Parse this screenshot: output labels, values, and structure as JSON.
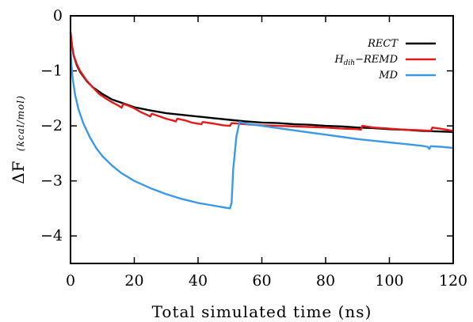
{
  "chart_data": {
    "type": "line",
    "xlabel": "Total simulated time (ns)",
    "ylabel_main": "ΔF",
    "ylabel_unit": "(kcal/mol)",
    "xlim": [
      0,
      120
    ],
    "ylim": [
      -4.5,
      0
    ],
    "xticks": [
      0,
      20,
      40,
      60,
      80,
      100,
      120
    ],
    "yticks": [
      0,
      -1,
      -2,
      -3,
      -4
    ],
    "grid": false,
    "legend_position": "top-right",
    "series": [
      {
        "name": "RECT",
        "color": "#000000",
        "points": [
          [
            0,
            -0.3
          ],
          [
            0.5,
            -0.55
          ],
          [
            1,
            -0.72
          ],
          [
            2,
            -0.9
          ],
          [
            3,
            -1.02
          ],
          [
            5,
            -1.18
          ],
          [
            7,
            -1.3
          ],
          [
            10,
            -1.42
          ],
          [
            13,
            -1.52
          ],
          [
            16,
            -1.58
          ],
          [
            20,
            -1.66
          ],
          [
            25,
            -1.72
          ],
          [
            30,
            -1.77
          ],
          [
            35,
            -1.8
          ],
          [
            40,
            -1.83
          ],
          [
            45,
            -1.86
          ],
          [
            50,
            -1.89
          ],
          [
            55,
            -1.92
          ],
          [
            60,
            -1.94
          ],
          [
            65,
            -1.95
          ],
          [
            70,
            -1.97
          ],
          [
            75,
            -1.98
          ],
          [
            80,
            -2.0
          ],
          [
            85,
            -2.01
          ],
          [
            90,
            -2.03
          ],
          [
            95,
            -2.04
          ],
          [
            100,
            -2.06
          ],
          [
            105,
            -2.07
          ],
          [
            110,
            -2.09
          ],
          [
            115,
            -2.1
          ],
          [
            120,
            -2.11
          ]
        ]
      },
      {
        "name": "Hdih-REMD",
        "color": "#e31a1c",
        "points": [
          [
            0,
            -0.3
          ],
          [
            0.5,
            -0.55
          ],
          [
            1,
            -0.72
          ],
          [
            2,
            -0.88
          ],
          [
            3,
            -1.0
          ],
          [
            5,
            -1.17
          ],
          [
            7,
            -1.3
          ],
          [
            9,
            -1.42
          ],
          [
            11,
            -1.5
          ],
          [
            13,
            -1.57
          ],
          [
            15,
            -1.63
          ],
          [
            16,
            -1.67
          ],
          [
            16.5,
            -1.6
          ],
          [
            18,
            -1.63
          ],
          [
            20,
            -1.68
          ],
          [
            22,
            -1.75
          ],
          [
            24,
            -1.8
          ],
          [
            25,
            -1.83
          ],
          [
            25.5,
            -1.78
          ],
          [
            28,
            -1.83
          ],
          [
            30,
            -1.87
          ],
          [
            32,
            -1.9
          ],
          [
            33,
            -1.92
          ],
          [
            33.5,
            -1.87
          ],
          [
            36,
            -1.9
          ],
          [
            38,
            -1.94
          ],
          [
            40,
            -1.96
          ],
          [
            41,
            -1.97
          ],
          [
            41.5,
            -1.93
          ],
          [
            45,
            -1.96
          ],
          [
            48,
            -1.99
          ],
          [
            50,
            -2.0
          ],
          [
            50.5,
            -1.95
          ],
          [
            55,
            -1.97
          ],
          [
            60,
            -1.99
          ],
          [
            65,
            -2.0
          ],
          [
            70,
            -2.01
          ],
          [
            75,
            -2.02
          ],
          [
            80,
            -2.03
          ],
          [
            85,
            -2.05
          ],
          [
            90,
            -2.06
          ],
          [
            91,
            -2.07
          ],
          [
            91.5,
            -2.0
          ],
          [
            95,
            -2.03
          ],
          [
            100,
            -2.05
          ],
          [
            105,
            -2.07
          ],
          [
            110,
            -2.08
          ],
          [
            113,
            -2.09
          ],
          [
            113.5,
            -2.03
          ],
          [
            117,
            -2.06
          ],
          [
            120,
            -2.09
          ]
        ]
      },
      {
        "name": "MD",
        "color": "#3b99e6",
        "points": [
          [
            0,
            -0.6
          ],
          [
            0.3,
            -0.9
          ],
          [
            0.7,
            -1.15
          ],
          [
            1.5,
            -1.45
          ],
          [
            2.5,
            -1.7
          ],
          [
            4,
            -1.95
          ],
          [
            6,
            -2.2
          ],
          [
            8,
            -2.4
          ],
          [
            10,
            -2.55
          ],
          [
            13,
            -2.72
          ],
          [
            16,
            -2.86
          ],
          [
            20,
            -3.0
          ],
          [
            25,
            -3.13
          ],
          [
            30,
            -3.24
          ],
          [
            35,
            -3.33
          ],
          [
            40,
            -3.4
          ],
          [
            45,
            -3.45
          ],
          [
            48,
            -3.48
          ],
          [
            50,
            -3.5
          ],
          [
            50.5,
            -3.4
          ],
          [
            51,
            -2.8
          ],
          [
            52,
            -2.2
          ],
          [
            53,
            -1.93
          ],
          [
            55,
            -1.96
          ],
          [
            60,
            -2.0
          ],
          [
            65,
            -2.04
          ],
          [
            70,
            -2.08
          ],
          [
            75,
            -2.12
          ],
          [
            80,
            -2.16
          ],
          [
            85,
            -2.2
          ],
          [
            90,
            -2.24
          ],
          [
            95,
            -2.27
          ],
          [
            100,
            -2.3
          ],
          [
            105,
            -2.33
          ],
          [
            110,
            -2.36
          ],
          [
            112,
            -2.38
          ],
          [
            112.5,
            -2.42
          ],
          [
            113,
            -2.37
          ],
          [
            116,
            -2.38
          ],
          [
            120,
            -2.4
          ]
        ]
      }
    ]
  }
}
